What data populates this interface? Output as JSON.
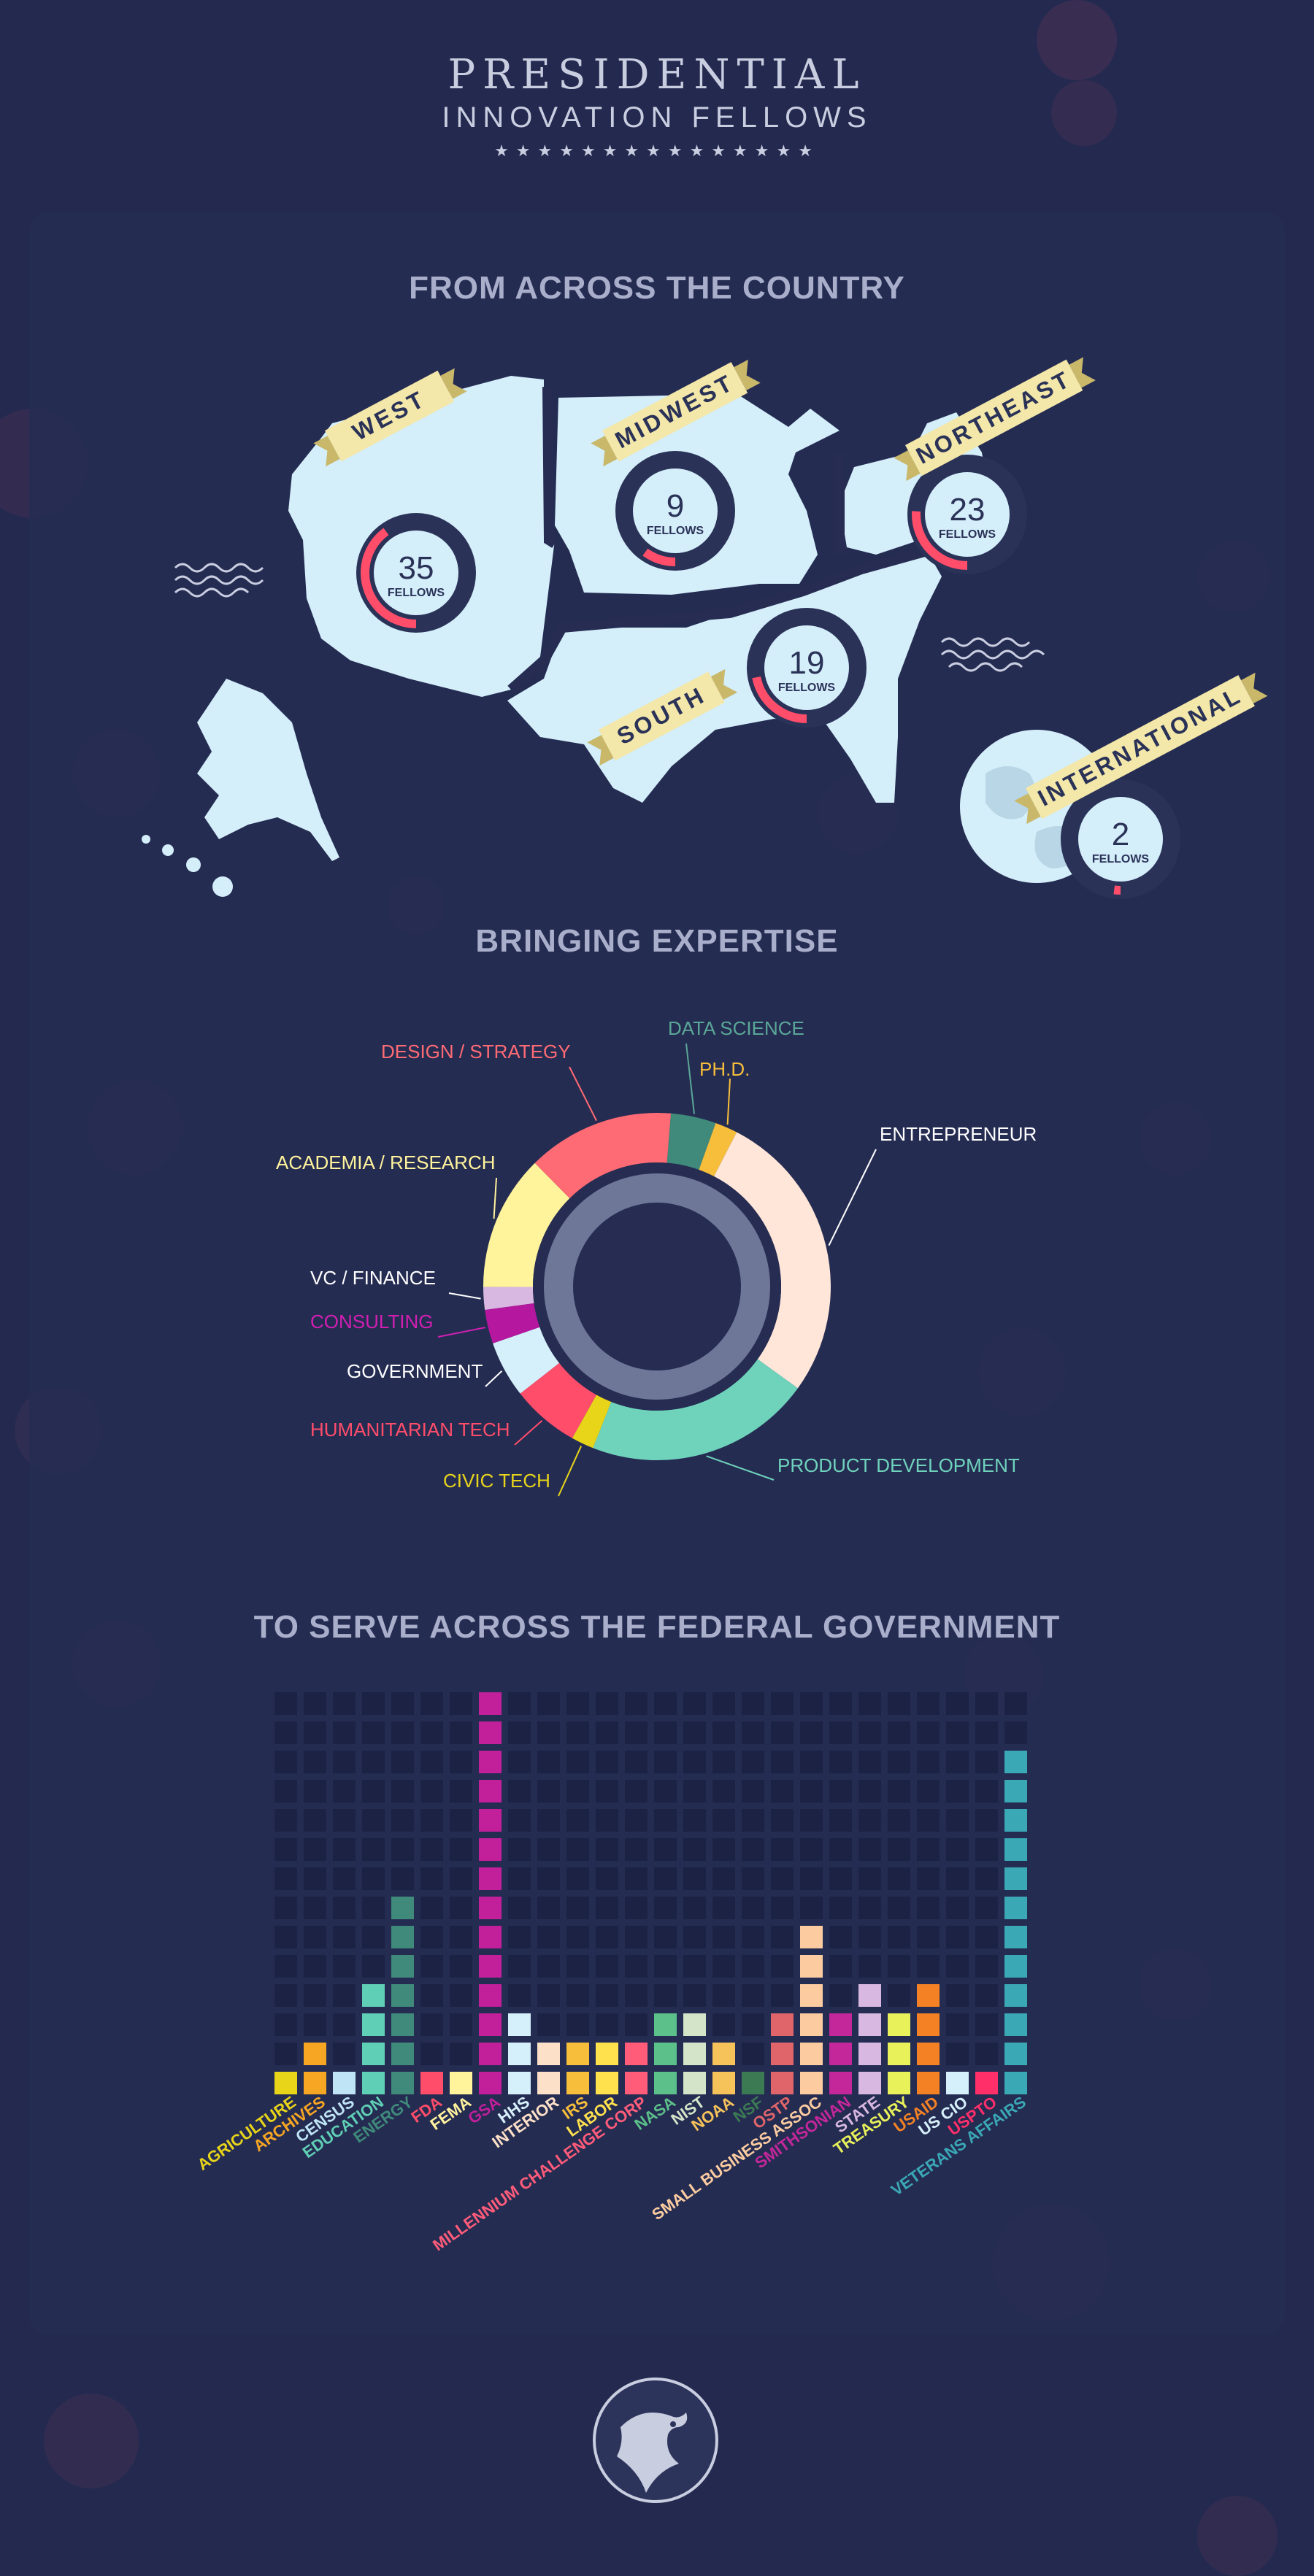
{
  "header": {
    "title_line1": "PRESIDENTIAL",
    "title_line2": "INNOVATION FELLOWS",
    "stars": "★★★★★★★★★★★★★★★"
  },
  "sections": {
    "country_title": "FROM ACROSS THE COUNTRY",
    "expertise_title": "BRINGING EXPERTISE",
    "agencies_title": "TO SERVE ACROSS THE FEDERAL GOVERNMENT"
  },
  "regions": [
    {
      "name": "WEST",
      "count": "35",
      "unit": "FELLOWS",
      "fraction": 0.4
    },
    {
      "name": "MIDWEST",
      "count": "9",
      "unit": "FELLOWS",
      "fraction": 0.1
    },
    {
      "name": "NORTHEAST",
      "count": "23",
      "unit": "FELLOWS",
      "fraction": 0.26
    },
    {
      "name": "SOUTH",
      "count": "19",
      "unit": "FELLOWS",
      "fraction": 0.22
    },
    {
      "name": "INTERNATIONAL",
      "count": "2",
      "unit": "FELLOWS",
      "fraction": 0.02
    }
  ],
  "colors": {
    "background": "#23294f",
    "panel": "#262c52",
    "map": "#d4eefa",
    "ribbon": "#f3e7a9",
    "ring_track": "#2a3258",
    "ring_fill": "#ff4d6a"
  },
  "chart_data": [
    {
      "type": "pie",
      "title": "BRINGING EXPERTISE",
      "slices": [
        {
          "label": "DATA SCIENCE",
          "value": 4,
          "color": "#3f8a7a"
        },
        {
          "label": "PH.D.",
          "value": 2,
          "color": "#f6be3b"
        },
        {
          "label": "ENTREPRENEUR",
          "value": 26,
          "color": "#ffe6d9"
        },
        {
          "label": "PRODUCT DEVELOPMENT",
          "value": 20,
          "color": "#6fd3bc"
        },
        {
          "label": "CIVIC TECH",
          "value": 2,
          "color": "#e8d51a"
        },
        {
          "label": "HUMANITARIAN TECH",
          "value": 6,
          "color": "#ff4d6a"
        },
        {
          "label": "GOVERNMENT",
          "value": 5,
          "color": "#d6f0fb"
        },
        {
          "label": "CONSULTING",
          "value": 3,
          "color": "#b5179e"
        },
        {
          "label": "VC / FINANCE",
          "value": 2,
          "color": "#d8b8e0"
        },
        {
          "label": "ACADEMIA / RESEARCH",
          "value": 12,
          "color": "#fff39c"
        },
        {
          "label": "DESIGN / STRATEGY",
          "value": 13,
          "color": "#ff6b74"
        }
      ]
    },
    {
      "type": "bar",
      "title": "TO SERVE ACROSS THE FEDERAL GOVERNMENT",
      "ylim": [
        0,
        14
      ],
      "categories": [
        "AGRICULTURE",
        "ARCHIVES",
        "CENSUS",
        "EDUCATION",
        "ENERGY",
        "FDA",
        "FEMA",
        "GSA",
        "HHS",
        "INTERIOR",
        "IRS",
        "LABOR",
        "MILLENNIUM CHALLENGE CORP",
        "NASA",
        "NIST",
        "NOAA",
        "NSF",
        "OSTP",
        "SMALL BUSINESS ASSOC",
        "SMITHSONIAN",
        "STATE",
        "TREASURY",
        "USAID",
        "US CIO",
        "USPTO",
        "VETERANS AFFAIRS"
      ],
      "values": [
        1,
        2,
        1,
        4,
        7,
        1,
        1,
        14,
        3,
        2,
        2,
        2,
        2,
        3,
        3,
        2,
        1,
        3,
        6,
        3,
        4,
        3,
        4,
        1,
        1,
        12
      ],
      "colors": [
        "#e8d51a",
        "#f6a623",
        "#bfe4f5",
        "#5fcfb5",
        "#3f8a7a",
        "#ff4d6a",
        "#fff39c",
        "#c21f9b",
        "#d6f0fb",
        "#fde0c8",
        "#f6be3b",
        "#ffe14d",
        "#ff5c7a",
        "#5cc08a",
        "#d4e4c8",
        "#f6c35a",
        "#3b7a52",
        "#e0656a",
        "#fccca0",
        "#c4279a",
        "#d8b8e0",
        "#e8f05a",
        "#f48224",
        "#d6f0fb",
        "#ff2f6a",
        "#3aa8b5"
      ]
    }
  ]
}
